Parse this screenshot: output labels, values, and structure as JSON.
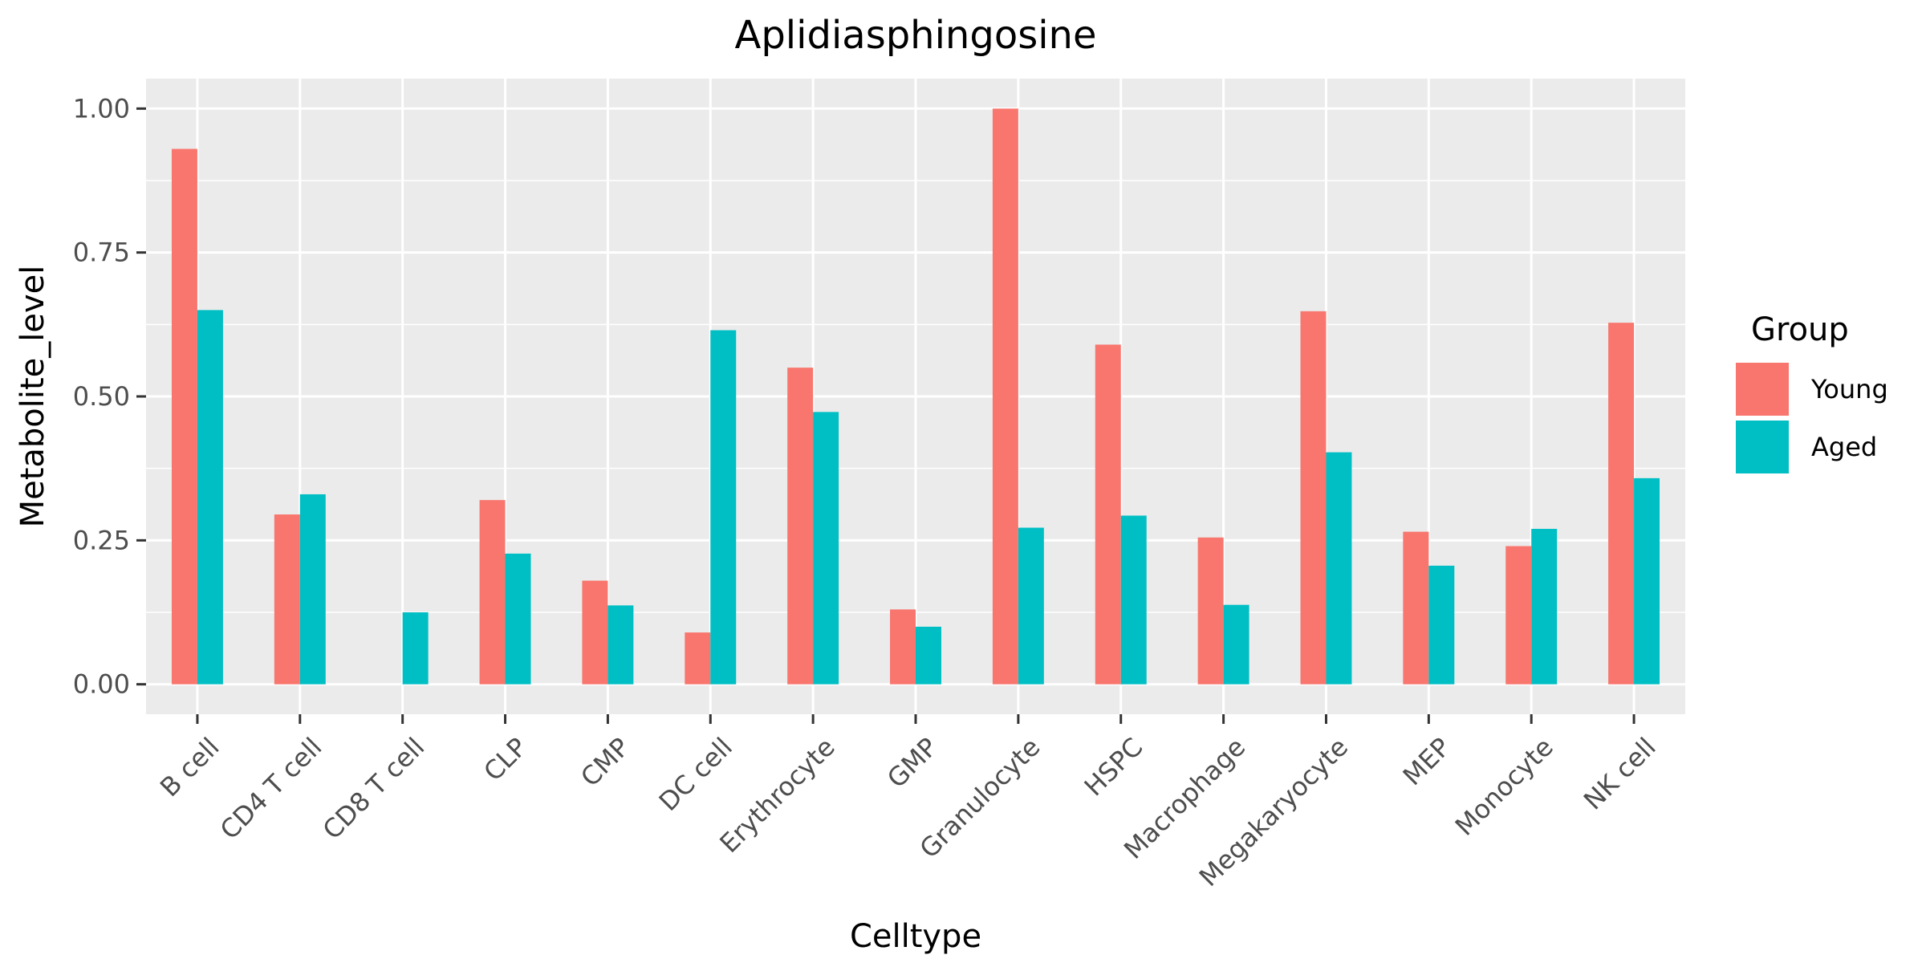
{
  "chart_data": {
    "type": "bar",
    "title": "Aplidiasphingosine",
    "xlabel": "Celltype",
    "ylabel": "Metabolite_level",
    "categories": [
      "B cell",
      "CD4 T cell",
      "CD8 T cell",
      "CLP",
      "CMP",
      "DC cell",
      "Erythrocyte",
      "GMP",
      "Granulocyte",
      "HSPC",
      "Macrophage",
      "Megakaryocyte",
      "MEP",
      "Monocyte",
      "NK cell"
    ],
    "series": [
      {
        "name": "Young",
        "color": "#F8766D",
        "values": [
          0.93,
          0.295,
          0.0,
          0.32,
          0.18,
          0.09,
          0.55,
          0.13,
          1.0,
          0.59,
          0.255,
          0.648,
          0.265,
          0.24,
          0.628
        ]
      },
      {
        "name": "Aged",
        "color": "#00BFC4",
        "values": [
          0.65,
          0.33,
          0.125,
          0.227,
          0.137,
          0.615,
          0.473,
          0.1,
          0.272,
          0.293,
          0.138,
          0.403,
          0.206,
          0.27,
          0.358
        ]
      }
    ],
    "ylim": [
      -0.052,
      1.052
    ],
    "yticks": [
      0.0,
      0.25,
      0.5,
      0.75,
      1.0
    ],
    "ytick_labels": [
      "0.00",
      "0.25",
      "0.50",
      "0.75",
      "1.00"
    ],
    "legend": {
      "title": "Group",
      "position": "right"
    },
    "grid": true
  }
}
